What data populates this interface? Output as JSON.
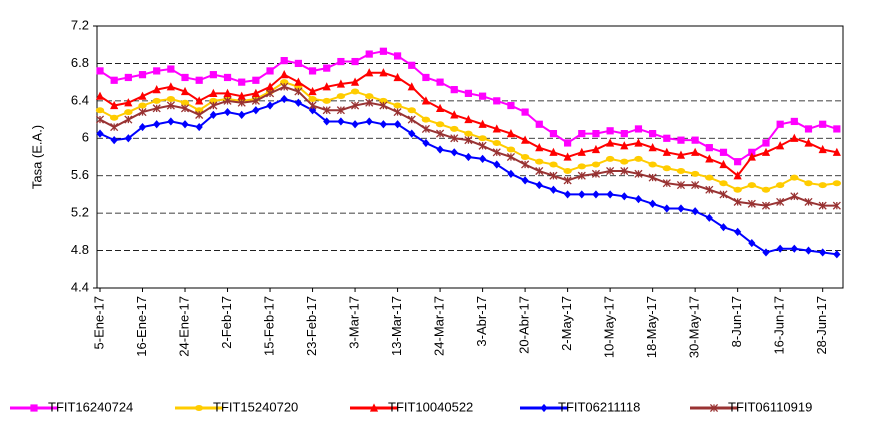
{
  "chart_data": {
    "type": "line",
    "y_label": "Tasa (E.A.)",
    "categories": [
      "5-Ene-17",
      null,
      null,
      "16-Ene-17",
      null,
      null,
      "24-Ene-17",
      null,
      null,
      "2-Feb-17",
      null,
      null,
      "15-Feb-17",
      null,
      null,
      "23-Feb-17",
      null,
      null,
      "3-Mar-17",
      null,
      null,
      "13-Mar-17",
      null,
      null,
      "24-Mar-17",
      null,
      null,
      "3-Abr-17",
      null,
      null,
      "20-Abr-17",
      null,
      null,
      "2-May-17",
      null,
      null,
      "10-May-17",
      null,
      null,
      "18-May-17",
      null,
      null,
      "30-May-17",
      null,
      null,
      "8-Jun-17",
      null,
      null,
      "16-Jun-17",
      null,
      null,
      "28-Jun-17",
      null
    ],
    "ylim": [
      4.4,
      7.2
    ],
    "yticks": [
      4.4,
      4.8,
      5.2,
      5.6,
      6,
      6.4,
      6.8,
      7.2
    ],
    "grid": true,
    "legend": "bottom",
    "series": [
      {
        "name": "TFIT16240724",
        "color": "#ff00ff",
        "marker": "square",
        "values": [
          6.72,
          6.62,
          6.65,
          6.68,
          6.72,
          6.74,
          6.65,
          6.62,
          6.68,
          6.65,
          6.6,
          6.62,
          6.72,
          6.83,
          6.8,
          6.72,
          6.75,
          6.82,
          6.82,
          6.9,
          6.93,
          6.88,
          6.78,
          6.65,
          6.6,
          6.52,
          6.48,
          6.45,
          6.4,
          6.35,
          6.28,
          6.15,
          6.05,
          5.95,
          6.05,
          6.05,
          6.08,
          6.05,
          6.1,
          6.05,
          6.0,
          5.98,
          5.98,
          5.9,
          5.85,
          5.75,
          5.85,
          5.95,
          6.15,
          6.18,
          6.1,
          6.15,
          6.1
        ]
      },
      {
        "name": "TFIT15240720",
        "color": "#ffcc00",
        "marker": "circle",
        "values": [
          6.3,
          6.22,
          6.28,
          6.35,
          6.4,
          6.42,
          6.38,
          6.3,
          6.4,
          6.42,
          6.4,
          6.42,
          6.5,
          6.6,
          6.55,
          6.42,
          6.4,
          6.45,
          6.5,
          6.45,
          6.4,
          6.35,
          6.3,
          6.2,
          6.15,
          6.1,
          6.05,
          6.0,
          5.95,
          5.88,
          5.8,
          5.75,
          5.72,
          5.65,
          5.7,
          5.72,
          5.78,
          5.75,
          5.78,
          5.72,
          5.68,
          5.65,
          5.62,
          5.58,
          5.52,
          5.45,
          5.5,
          5.45,
          5.5,
          5.58,
          5.52,
          5.5,
          5.52
        ]
      },
      {
        "name": "TFIT10040522",
        "color": "#ff0000",
        "marker": "triangle",
        "values": [
          6.45,
          6.35,
          6.38,
          6.45,
          6.52,
          6.55,
          6.5,
          6.4,
          6.48,
          6.48,
          6.45,
          6.48,
          6.55,
          6.68,
          6.6,
          6.5,
          6.55,
          6.58,
          6.6,
          6.7,
          6.7,
          6.65,
          6.55,
          6.4,
          6.32,
          6.25,
          6.2,
          6.15,
          6.1,
          6.05,
          5.98,
          5.9,
          5.85,
          5.8,
          5.85,
          5.88,
          5.95,
          5.92,
          5.95,
          5.9,
          5.85,
          5.82,
          5.85,
          5.78,
          5.72,
          5.6,
          5.8,
          5.85,
          5.92,
          6.0,
          5.95,
          5.88,
          5.85
        ]
      },
      {
        "name": "TFIT06211118",
        "color": "#0000ff",
        "marker": "diamond",
        "values": [
          6.05,
          5.98,
          6.0,
          6.12,
          6.15,
          6.18,
          6.15,
          6.12,
          6.25,
          6.28,
          6.25,
          6.3,
          6.35,
          6.42,
          6.38,
          6.3,
          6.18,
          6.18,
          6.15,
          6.18,
          6.15,
          6.15,
          6.05,
          5.95,
          5.88,
          5.85,
          5.8,
          5.78,
          5.72,
          5.62,
          5.55,
          5.5,
          5.45,
          5.4,
          5.4,
          5.4,
          5.4,
          5.38,
          5.35,
          5.3,
          5.25,
          5.25,
          5.22,
          5.15,
          5.05,
          5.0,
          4.88,
          4.78,
          4.82,
          4.82,
          4.8,
          4.78,
          4.76
        ]
      },
      {
        "name": "TFIT06110919",
        "color": "#993333",
        "marker": "star",
        "values": [
          6.2,
          6.12,
          6.2,
          6.28,
          6.32,
          6.35,
          6.32,
          6.25,
          6.35,
          6.4,
          6.38,
          6.4,
          6.48,
          6.55,
          6.5,
          6.35,
          6.3,
          6.3,
          6.35,
          6.38,
          6.35,
          6.28,
          6.2,
          6.1,
          6.05,
          6.0,
          5.98,
          5.92,
          5.85,
          5.8,
          5.72,
          5.65,
          5.6,
          5.55,
          5.6,
          5.62,
          5.65,
          5.65,
          5.62,
          5.58,
          5.52,
          5.5,
          5.5,
          5.45,
          5.4,
          5.32,
          5.3,
          5.28,
          5.32,
          5.38,
          5.32,
          5.28,
          5.28
        ]
      }
    ]
  }
}
